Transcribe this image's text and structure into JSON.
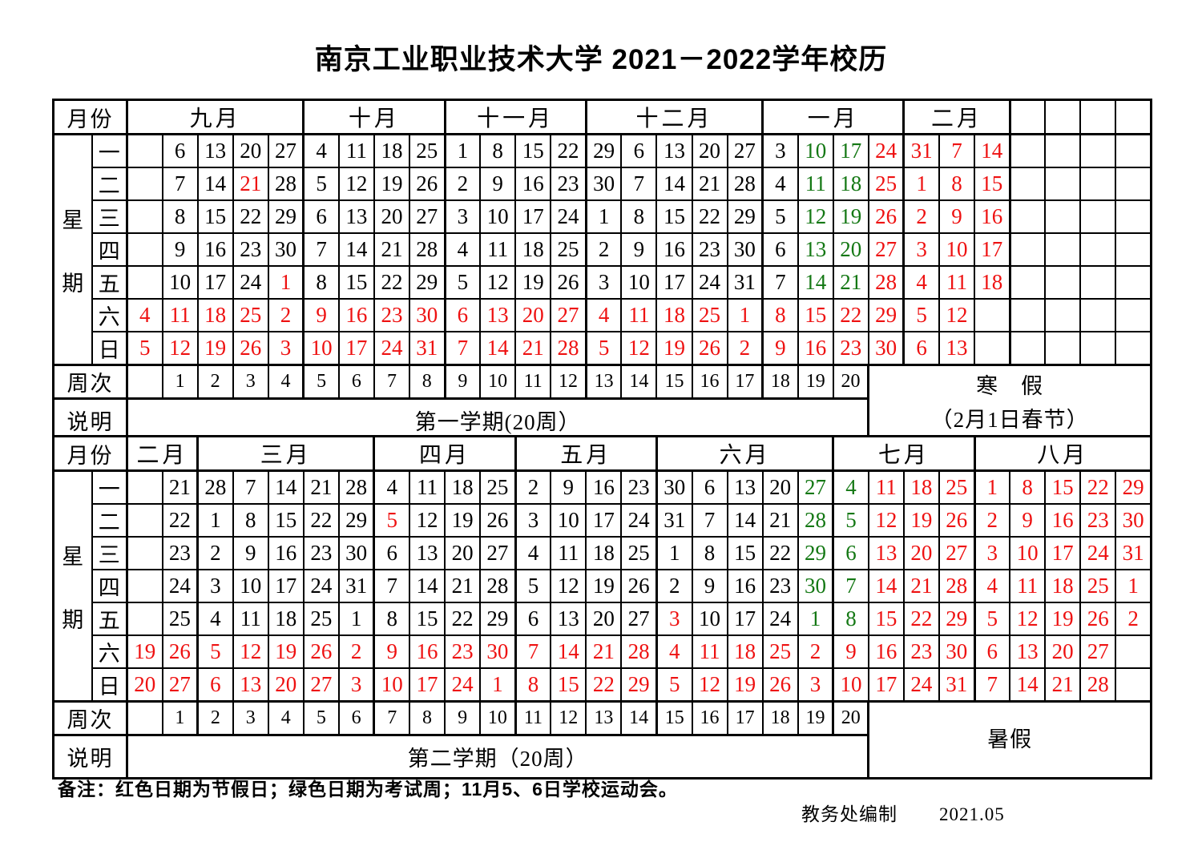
{
  "title": "南京工业职业技术大学 2021－2022学年校历",
  "colors": {
    "red": "#ee1111",
    "green": "#147814",
    "black": "#000000",
    "border": "#000000"
  },
  "row_labels": {
    "month": "月份",
    "week_group_chars": [
      "星",
      "期"
    ],
    "weeknum": "周次",
    "note": "说明"
  },
  "weekdays": [
    "一",
    "二",
    "三",
    "四",
    "五",
    "六",
    "日"
  ],
  "tables": [
    {
      "months": [
        {
          "label": "九月",
          "span": 5
        },
        {
          "label": "十月",
          "span": 4
        },
        {
          "label": "十一月",
          "span": 4
        },
        {
          "label": "十二月",
          "span": 5
        },
        {
          "label": "一月",
          "span": 4
        },
        {
          "label": "二月",
          "span": 3
        },
        {
          "label": "",
          "span": 1
        },
        {
          "label": "",
          "span": 1
        },
        {
          "label": "",
          "span": 1
        },
        {
          "label": "",
          "span": 1
        }
      ],
      "rows": [
        [
          "",
          "6",
          "13",
          "20",
          "27",
          "4",
          "11",
          "18",
          "25",
          "1",
          "8",
          "15",
          "22",
          "29",
          "6",
          "13",
          "20",
          "27",
          "3",
          "10:g",
          "17:g",
          "24:r",
          "31:r",
          "7:r",
          "14:r",
          "",
          "",
          "",
          ""
        ],
        [
          "",
          "7",
          "14",
          "21:rb",
          "28",
          "5",
          "12",
          "19",
          "26",
          "2",
          "9",
          "16",
          "23",
          "30",
          "7",
          "14",
          "21",
          "28",
          "4",
          "11:g",
          "18:g",
          "25:r",
          "1:rb",
          "8:r",
          "15:r",
          "",
          "",
          "",
          ""
        ],
        [
          "",
          "8",
          "15",
          "22",
          "29",
          "6",
          "13",
          "20",
          "27",
          "3",
          "10",
          "17",
          "24",
          "1",
          "8",
          "15",
          "22",
          "29",
          "5",
          "12:g",
          "19:g",
          "26:r",
          "2:r",
          "9:r",
          "16:r",
          "",
          "",
          "",
          ""
        ],
        [
          "",
          "9",
          "16",
          "23",
          "30",
          "7",
          "14",
          "21",
          "28",
          "4",
          "11",
          "18",
          "25",
          "2",
          "9",
          "16",
          "23",
          "30",
          "6",
          "13:g",
          "20:g",
          "27:r",
          "3:r",
          "10:r",
          "17:r",
          "",
          "",
          "",
          ""
        ],
        [
          "",
          "10",
          "17",
          "24",
          "1:rb",
          "8",
          "15",
          "22",
          "29",
          "5",
          "12",
          "19",
          "26",
          "3",
          "10",
          "17",
          "24",
          "31",
          "7",
          "14:g",
          "21:g",
          "28:r",
          "4:r",
          "11:r",
          "18:r",
          "",
          "",
          "",
          ""
        ],
        [
          "4:r",
          "11:r",
          "18:r",
          "25:r",
          "2:r",
          "9:r",
          "16:r",
          "23:r",
          "30:r",
          "6:r",
          "13:r",
          "20:r",
          "27:r",
          "4:r",
          "11:r",
          "18:r",
          "25:r",
          "1:rb",
          "8:r",
          "15:r",
          "22:r",
          "29:r",
          "5:r",
          "12:r",
          "",
          "",
          "",
          "",
          ""
        ],
        [
          "5:r",
          "12:r",
          "19:r",
          "26:r",
          "3:r",
          "10:r",
          "17:r",
          "24:r",
          "31:r",
          "7:r",
          "14:r",
          "21:r",
          "28:r",
          "5:r",
          "12:r",
          "19:r",
          "26:r",
          "2:r",
          "9:r",
          "16:r",
          "23:r",
          "30:r",
          "6:r",
          "13:r",
          "",
          "",
          "",
          "",
          ""
        ]
      ],
      "week_numbers": [
        "",
        "1",
        "2",
        "3",
        "4",
        "5",
        "6",
        "7",
        "8",
        "9",
        "10",
        "11",
        "12",
        "13",
        "14",
        "15",
        "16",
        "17",
        "18",
        "19",
        "20"
      ],
      "note": "第一学期(20周）",
      "break": {
        "lines": [
          "寒　假",
          "（2月1日春节）"
        ],
        "colspan": 8
      }
    },
    {
      "months": [
        {
          "label": "二月",
          "span": 2
        },
        {
          "label": "三月",
          "span": 5
        },
        {
          "label": "四月",
          "span": 4
        },
        {
          "label": "五月",
          "span": 4
        },
        {
          "label": "六月",
          "span": 5
        },
        {
          "label": "七月",
          "span": 4
        },
        {
          "label": "八月",
          "span": 5
        }
      ],
      "rows": [
        [
          "",
          "21",
          "28",
          "7",
          "14",
          "21",
          "28",
          "4",
          "11",
          "18",
          "25",
          "2",
          "9",
          "16",
          "23",
          "30",
          "6",
          "13",
          "20",
          "27:g",
          "4:g",
          "11:r",
          "18:r",
          "25:r",
          "1:r",
          "8:r",
          "15:r",
          "22:r",
          "29:r"
        ],
        [
          "",
          "22",
          "1",
          "8",
          "15",
          "22",
          "29",
          "5:rb",
          "12",
          "19",
          "26",
          "3",
          "10",
          "17",
          "24",
          "31",
          "7",
          "14",
          "21",
          "28:g",
          "5:g",
          "12:r",
          "19:r",
          "26:r",
          "2:r",
          "9:r",
          "16:r",
          "23:r",
          "30:r"
        ],
        [
          "",
          "23",
          "2",
          "9",
          "16",
          "23",
          "30",
          "6",
          "13",
          "20",
          "27",
          "4",
          "11",
          "18",
          "25",
          "1",
          "8",
          "15",
          "22",
          "29:g",
          "6:g",
          "13:r",
          "20:r",
          "27:r",
          "3:r",
          "10:r",
          "17:r",
          "24:r",
          "31:r"
        ],
        [
          "",
          "24",
          "3",
          "10",
          "17",
          "24",
          "31",
          "7",
          "14",
          "21",
          "28",
          "5",
          "12",
          "19",
          "26",
          "2",
          "9",
          "16",
          "23",
          "30:g",
          "7:g",
          "14:r",
          "21:r",
          "28:r",
          "4:r",
          "11:r",
          "18:r",
          "25:r",
          "1:r"
        ],
        [
          "",
          "25",
          "4",
          "11",
          "18",
          "25",
          "1",
          "8",
          "15",
          "22",
          "29",
          "6",
          "13",
          "20",
          "27",
          "3:rb",
          "10",
          "17",
          "24",
          "1:g",
          "8:g",
          "15:r",
          "22:r",
          "29:r",
          "5:r",
          "12:r",
          "19:r",
          "26:r",
          "2:r"
        ],
        [
          "19:r",
          "26:r",
          "5:r",
          "12:r",
          "19:r",
          "26:r",
          "2:r",
          "9:r",
          "16:r",
          "23:r",
          "30:r",
          "7:r",
          "14:r",
          "21:r",
          "28:r",
          "4:r",
          "11:r",
          "18:r",
          "25:r",
          "2:r",
          "9:r",
          "16:r",
          "23:r",
          "30:r",
          "6:r",
          "13:r",
          "20:r",
          "27:r",
          ""
        ],
        [
          "20:r",
          "27:r",
          "6:r",
          "13:r",
          "20:r",
          "27:r",
          "3:r",
          "10:r",
          "17:r",
          "24:r",
          "1:rb",
          "8:r",
          "15:r",
          "22:r",
          "29:r",
          "5:r",
          "12:r",
          "19:r",
          "26:r",
          "3:r",
          "10:r",
          "17:r",
          "24:r",
          "31:r",
          "7:r",
          "14:r",
          "21:r",
          "28:r",
          ""
        ]
      ],
      "week_numbers": [
        "",
        "1",
        "2",
        "3",
        "4",
        "5",
        "6",
        "7",
        "8",
        "9",
        "10",
        "11",
        "12",
        "13",
        "14",
        "15",
        "16",
        "17",
        "18",
        "19",
        "20"
      ],
      "note": "第二学期（20周）",
      "break": {
        "lines": [
          "暑假"
        ],
        "colspan": 8
      }
    }
  ],
  "footer": {
    "remark": "备注：红色日期为节假日；绿色日期为考试周；11月5、6日学校运动会。",
    "credit": "教务处编制",
    "credit_date": "2021.05"
  }
}
